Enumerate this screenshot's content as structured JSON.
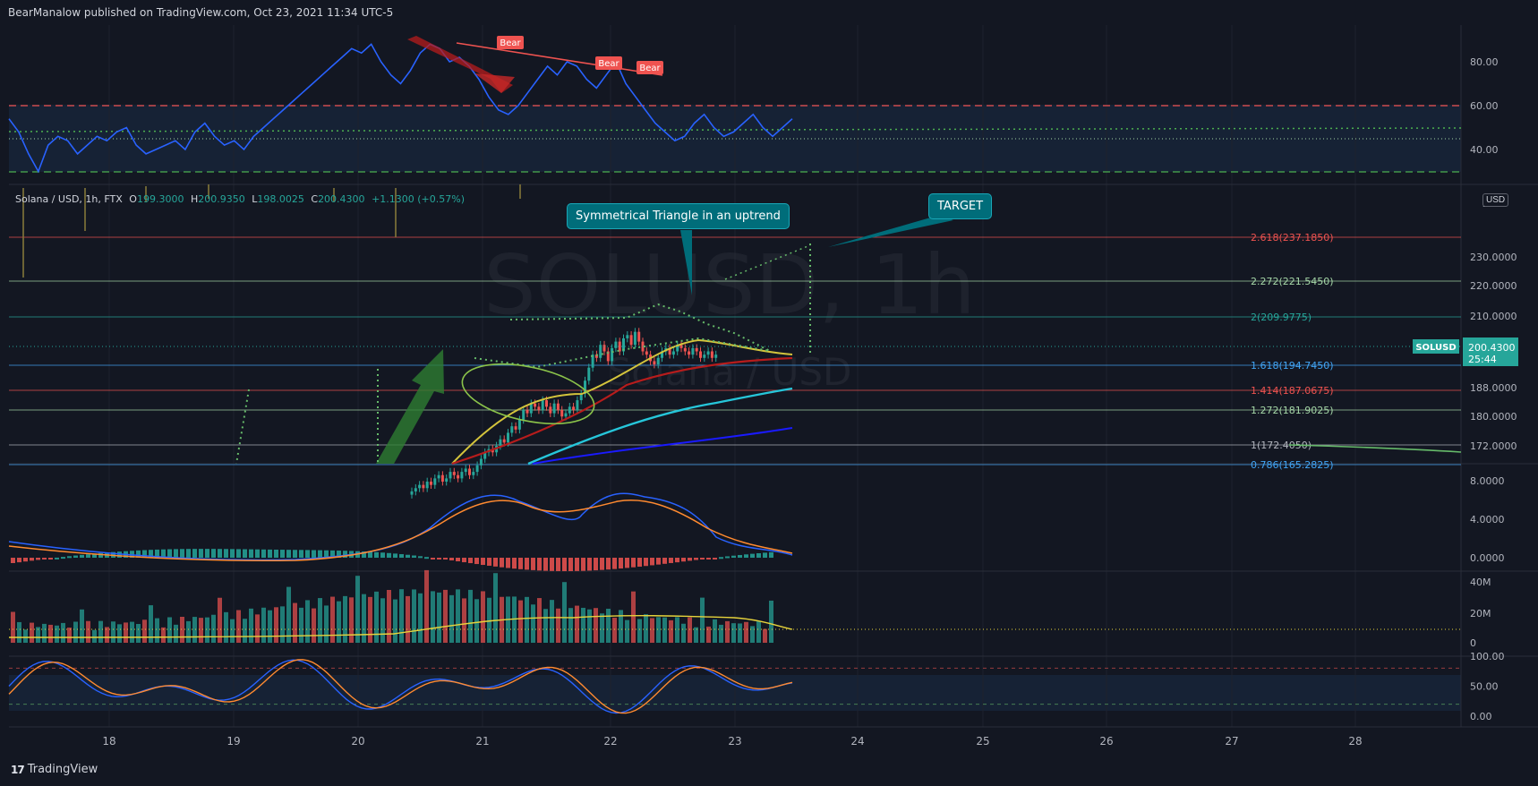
{
  "header": {
    "text": "BearManalow published on TradingView.com, Oct 23, 2021 11:34 UTC-5"
  },
  "footer": {
    "logo_mark": "17",
    "logo_text": "TradingView"
  },
  "legend": {
    "symbol": "Solana / USD, 1h, FTX",
    "o_label": "O",
    "o": "199.3000",
    "h_label": "H",
    "h": "200.9350",
    "l_label": "L",
    "l": "198.0025",
    "c_label": "C",
    "c": "200.4300",
    "change": "+1.1300 (+0.57%)"
  },
  "watermark": {
    "ticker": "SOLUSD, 1h",
    "name": "Solana / USD"
  },
  "currency_badge": "USD",
  "annotations": {
    "triangle": "Symmetrical Triangle in an uptrend",
    "target": "TARGET",
    "bear": "Bear"
  },
  "colors": {
    "background": "#131722",
    "up": "#26a69a",
    "down": "#ef5350",
    "rsi": "#2962ff",
    "accent": "#1aa6b7"
  },
  "chart_data": {
    "x_ticks": [
      "18",
      "19",
      "20",
      "21",
      "22",
      "23",
      "24",
      "25",
      "26",
      "27",
      "28"
    ],
    "rsi": {
      "type": "line",
      "y_ticks": [
        "80.00",
        "60.00",
        "40.00"
      ],
      "levels": [
        60,
        30
      ],
      "values": [
        54,
        48,
        38,
        30,
        42,
        46,
        44,
        38,
        42,
        46,
        44,
        48,
        50,
        42,
        38,
        40,
        42,
        44,
        40,
        48,
        52,
        46,
        42,
        44,
        40,
        46,
        50,
        54,
        58,
        62,
        66,
        70,
        74,
        78,
        82,
        86,
        84,
        88,
        80,
        74,
        70,
        76,
        84,
        88,
        86,
        80,
        82,
        78,
        72,
        64,
        58,
        56,
        60,
        66,
        72,
        78,
        74,
        80,
        78,
        72,
        68,
        74,
        80,
        70,
        64,
        58,
        52,
        48,
        44,
        46,
        52,
        56,
        50,
        46,
        48,
        52,
        56,
        50,
        46,
        50,
        54
      ]
    },
    "price": {
      "type": "candlestick",
      "unit": "USD",
      "y_ticks": [
        "230.0000",
        "220.0000",
        "210.0000",
        "188.0000",
        "180.0000",
        "172.0000"
      ],
      "last_symbol": "SOLUSD",
      "last_price": "200.4300",
      "countdown": "25:44",
      "fib_levels": [
        {
          "label": "2.618(237.1850)",
          "value": 237.185,
          "color": "#ef5350"
        },
        {
          "label": "2.272(221.5450)",
          "value": 221.545,
          "color": "#a5d6a7"
        },
        {
          "label": "2(209.9775)",
          "value": 209.9775,
          "color": "#26a69a"
        },
        {
          "label": "1.618(194.7450)",
          "value": 194.745,
          "color": "#42a5f5"
        },
        {
          "label": "1.414(187.0675)",
          "value": 187.0675,
          "color": "#ef5350"
        },
        {
          "label": "1.272(181.9025)",
          "value": 181.9025,
          "color": "#a5d6a7"
        },
        {
          "label": "1(172.4050)",
          "value": 172.405,
          "color": "#b2b5be"
        },
        {
          "label": "0.786(165.2825)",
          "value": 165.2825,
          "color": "#42a5f5"
        }
      ],
      "closes": [
        158,
        159,
        160,
        159,
        161,
        160,
        162,
        163,
        161,
        162,
        164,
        163,
        162,
        164,
        165,
        163,
        164,
        166,
        168,
        170,
        171,
        170,
        172,
        174,
        173,
        176,
        178,
        177,
        180,
        183,
        182,
        185,
        184,
        183,
        186,
        184,
        182,
        185,
        183,
        181,
        182,
        184,
        183,
        186,
        188,
        192,
        196,
        200,
        199,
        203,
        201,
        198,
        202,
        204,
        201,
        205,
        206,
        203,
        207,
        204,
        201,
        200,
        198,
        197,
        199,
        201,
        202,
        200,
        201,
        203,
        202,
        201,
        200,
        202,
        201,
        199,
        200,
        201,
        199,
        200
      ]
    },
    "macd": {
      "type": "histogram+line",
      "y_ticks": [
        "8.0000",
        "4.0000",
        "0.0000"
      ]
    },
    "volume": {
      "type": "bar",
      "y_ticks": [
        "40M",
        "20M",
        "0"
      ]
    },
    "stoch": {
      "type": "line",
      "y_ticks": [
        "100.00",
        "50.00",
        "0.00"
      ],
      "levels": [
        80,
        20
      ]
    }
  }
}
